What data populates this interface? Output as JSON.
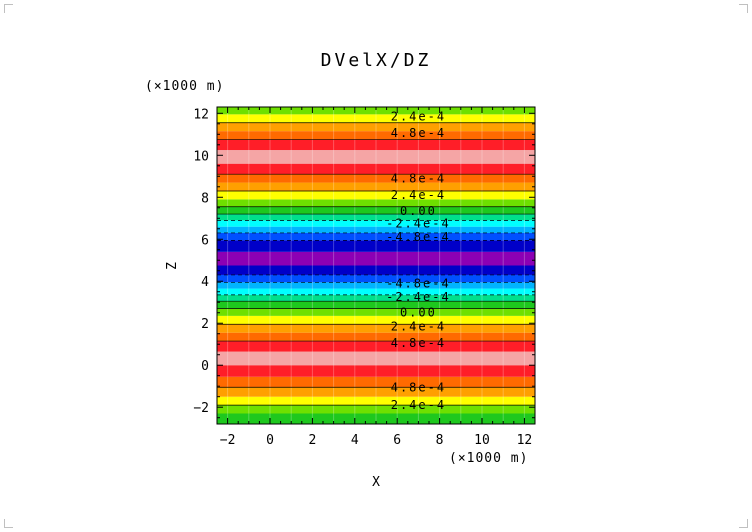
{
  "chart_data": {
    "type": "heatmap",
    "title": "DVelX/DZ",
    "xlabel": "X",
    "ylabel": "Z",
    "x_unit_label": "(×1000 m)",
    "y_unit_label": "(×1000 m)",
    "xlim": [
      -2.5,
      12.5
    ],
    "ylim": [
      -2.8,
      12.3
    ],
    "x_ticks": [
      -2,
      0,
      2,
      4,
      6,
      8,
      10,
      12
    ],
    "y_ticks": [
      -2,
      0,
      2,
      4,
      6,
      8,
      10,
      12
    ],
    "x_tick_labels": [
      "−2",
      "0",
      "2",
      "4",
      "6",
      "8",
      "10",
      "12"
    ],
    "y_tick_labels": [
      "−2",
      "0",
      "2",
      "4",
      "6",
      "8",
      "10",
      "12"
    ],
    "bands": [
      {
        "z0": -2.8,
        "z1": -2.3,
        "color": "#1ec81e"
      },
      {
        "z0": -2.3,
        "z1": -1.9,
        "color": "#6ee000"
      },
      {
        "z0": -1.9,
        "z1": -1.5,
        "color": "#ffff00"
      },
      {
        "z0": -1.5,
        "z1": -1.05,
        "color": "#ffa000"
      },
      {
        "z0": -1.05,
        "z1": -0.55,
        "color": "#ff6a00"
      },
      {
        "z0": -0.55,
        "z1": 0.0,
        "color": "#ff1e28"
      },
      {
        "z0": 0.0,
        "z1": 0.65,
        "color": "#f5a5a5"
      },
      {
        "z0": 0.65,
        "z1": 1.15,
        "color": "#ff1e28"
      },
      {
        "z0": 1.15,
        "z1": 1.55,
        "color": "#ff6a00"
      },
      {
        "z0": 1.55,
        "z1": 1.95,
        "color": "#ffa000"
      },
      {
        "z0": 1.95,
        "z1": 2.35,
        "color": "#ffff00"
      },
      {
        "z0": 2.35,
        "z1": 2.7,
        "color": "#6ee000"
      },
      {
        "z0": 2.7,
        "z1": 3.05,
        "color": "#1ec81e"
      },
      {
        "z0": 3.05,
        "z1": 3.35,
        "color": "#00e08c"
      },
      {
        "z0": 3.35,
        "z1": 3.65,
        "color": "#00ffff"
      },
      {
        "z0": 3.65,
        "z1": 3.95,
        "color": "#00b4ff"
      },
      {
        "z0": 3.95,
        "z1": 4.3,
        "color": "#0050ff"
      },
      {
        "z0": 4.3,
        "z1": 4.75,
        "color": "#0000c8"
      },
      {
        "z0": 4.75,
        "z1": 5.4,
        "color": "#8c00b4"
      },
      {
        "z0": 5.4,
        "z1": 5.95,
        "color": "#0000c8"
      },
      {
        "z0": 5.95,
        "z1": 6.3,
        "color": "#0050ff"
      },
      {
        "z0": 6.3,
        "z1": 6.6,
        "color": "#00b4ff"
      },
      {
        "z0": 6.6,
        "z1": 6.9,
        "color": "#00ffff"
      },
      {
        "z0": 6.9,
        "z1": 7.2,
        "color": "#00e08c"
      },
      {
        "z0": 7.2,
        "z1": 7.55,
        "color": "#1ec81e"
      },
      {
        "z0": 7.55,
        "z1": 7.9,
        "color": "#6ee000"
      },
      {
        "z0": 7.9,
        "z1": 8.3,
        "color": "#ffff00"
      },
      {
        "z0": 8.3,
        "z1": 8.7,
        "color": "#ffa000"
      },
      {
        "z0": 8.7,
        "z1": 9.1,
        "color": "#ff6a00"
      },
      {
        "z0": 9.1,
        "z1": 9.6,
        "color": "#ff1e28"
      },
      {
        "z0": 9.6,
        "z1": 10.25,
        "color": "#f5a5a5"
      },
      {
        "z0": 10.25,
        "z1": 10.75,
        "color": "#ff1e28"
      },
      {
        "z0": 10.75,
        "z1": 11.15,
        "color": "#ff6a00"
      },
      {
        "z0": 11.15,
        "z1": 11.55,
        "color": "#ffa000"
      },
      {
        "z0": 11.55,
        "z1": 11.95,
        "color": "#ffff00"
      },
      {
        "z0": 11.95,
        "z1": 12.3,
        "color": "#6ee000"
      }
    ],
    "contour_levels": [
      {
        "z": -1.9,
        "dashed": false
      },
      {
        "z": -1.05,
        "dashed": false
      },
      {
        "z": 1.15,
        "dashed": false
      },
      {
        "z": 1.95,
        "dashed": false
      },
      {
        "z": 2.7,
        "dashed": false
      },
      {
        "z": 3.05,
        "dashed": false
      },
      {
        "z": 3.35,
        "dashed": true
      },
      {
        "z": 3.95,
        "dashed": true
      },
      {
        "z": 4.3,
        "dashed": true
      },
      {
        "z": 5.95,
        "dashed": true
      },
      {
        "z": 6.3,
        "dashed": true
      },
      {
        "z": 6.9,
        "dashed": true
      },
      {
        "z": 7.2,
        "dashed": false
      },
      {
        "z": 7.55,
        "dashed": false
      },
      {
        "z": 8.3,
        "dashed": false
      },
      {
        "z": 9.1,
        "dashed": false
      },
      {
        "z": 10.75,
        "dashed": false
      },
      {
        "z": 11.55,
        "dashed": false
      }
    ],
    "contour_labels": [
      {
        "x": 7.0,
        "z": 11.85,
        "text": "2.4e-4"
      },
      {
        "x": 7.0,
        "z": 11.05,
        "text": "4.8e-4"
      },
      {
        "x": 7.0,
        "z": 8.9,
        "text": "4.8e-4"
      },
      {
        "x": 7.0,
        "z": 8.1,
        "text": "2.4e-4"
      },
      {
        "x": 7.0,
        "z": 7.35,
        "text": "0.00"
      },
      {
        "x": 7.0,
        "z": 6.75,
        "text": "-2.4e-4"
      },
      {
        "x": 7.0,
        "z": 6.1,
        "text": "-4.8e-4"
      },
      {
        "x": 7.0,
        "z": 3.9,
        "text": "-4.8e-4"
      },
      {
        "x": 7.0,
        "z": 3.25,
        "text": "-2.4e-4"
      },
      {
        "x": 7.0,
        "z": 2.5,
        "text": "0.00"
      },
      {
        "x": 7.0,
        "z": 1.85,
        "text": "2.4e-4"
      },
      {
        "x": 7.0,
        "z": 1.05,
        "text": "4.8e-4"
      },
      {
        "x": 7.0,
        "z": -1.05,
        "text": "4.8e-4"
      },
      {
        "x": 7.0,
        "z": -1.9,
        "text": "2.4e-4"
      }
    ],
    "grid": true,
    "legend": "none"
  }
}
